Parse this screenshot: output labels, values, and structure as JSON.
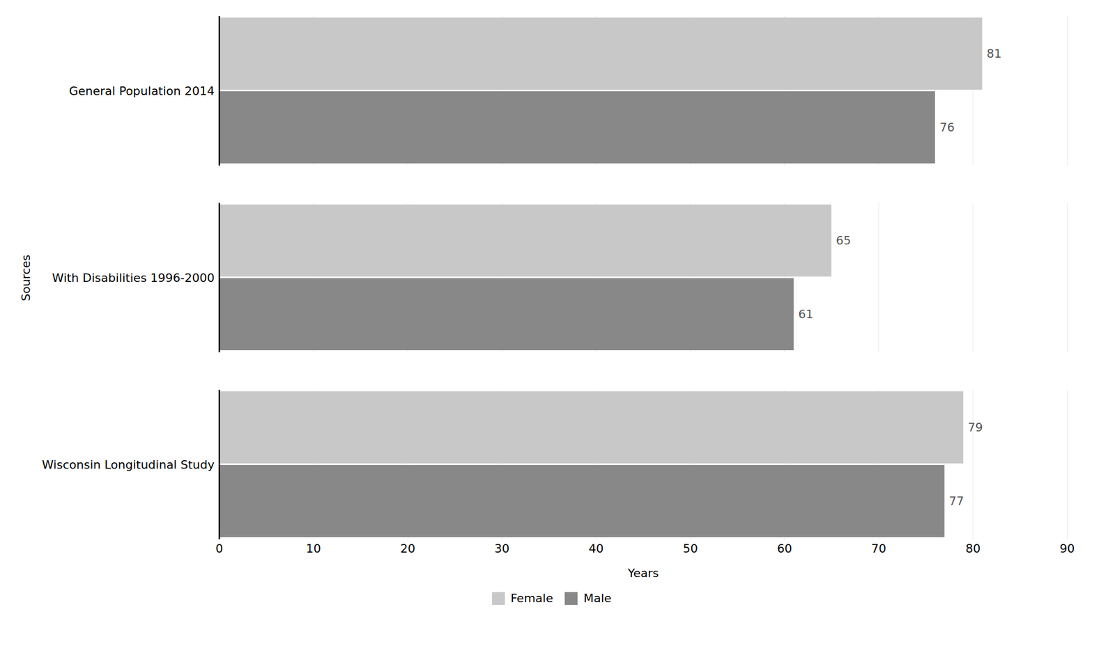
{
  "chart_data": {
    "type": "bar",
    "orientation": "horizontal",
    "categories": [
      "General Population 2014",
      "With Disabilities 1996-2000",
      "Wisconsin Longitudinal Study"
    ],
    "series": [
      {
        "name": "Female",
        "color": "#c8c8c8",
        "values": [
          81,
          65,
          79
        ]
      },
      {
        "name": "Male",
        "color": "#888888",
        "values": [
          76,
          61,
          77
        ]
      }
    ],
    "xlabel": "Years",
    "ylabel": "Sources",
    "xlim": [
      0,
      90
    ],
    "xticks": [
      0,
      10,
      20,
      30,
      40,
      50,
      60,
      70,
      80,
      90
    ],
    "grid": true,
    "data_labels": true,
    "legend": "bottom"
  }
}
